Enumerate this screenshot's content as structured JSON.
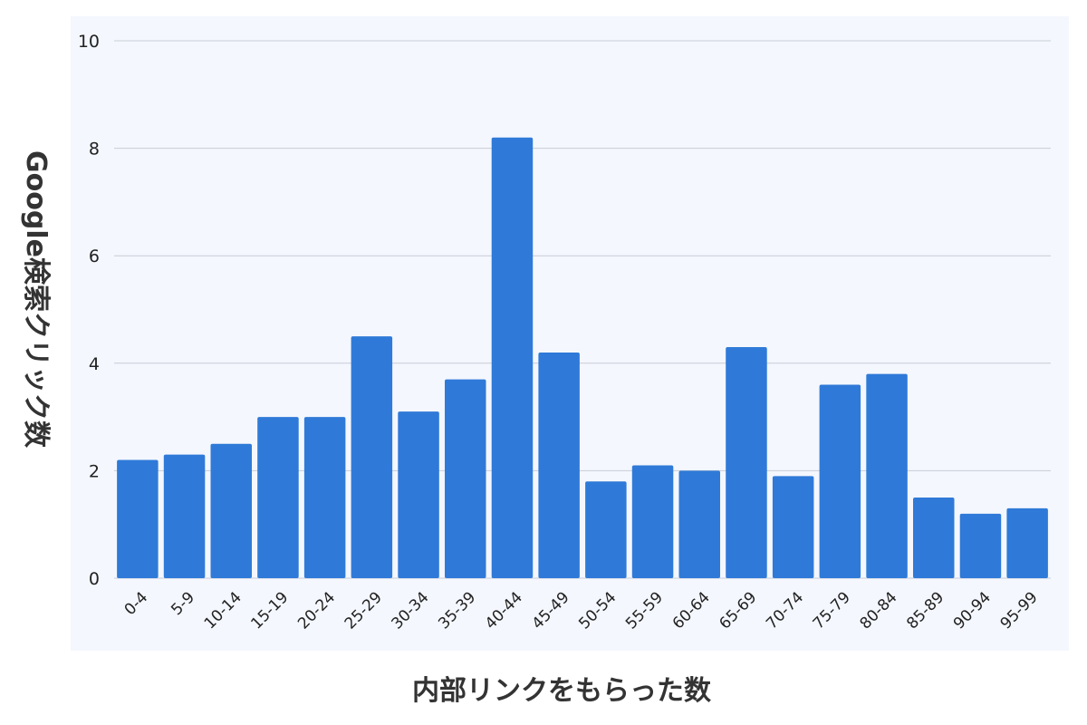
{
  "chart_data": {
    "type": "bar",
    "title": "",
    "xlabel": "内部リンクをもらった数",
    "ylabel": "Google検索クリック数",
    "ylim": [
      0,
      10
    ],
    "yticks": [
      0,
      2,
      4,
      6,
      8,
      10
    ],
    "grid": true,
    "legend": "none",
    "bar_color": "#2f7ad8",
    "plot_background": "#f4f7fd",
    "categories": [
      "0-4",
      "5-9",
      "10-14",
      "15-19",
      "20-24",
      "25-29",
      "30-34",
      "35-39",
      "40-44",
      "45-49",
      "50-54",
      "55-59",
      "60-64",
      "65-69",
      "70-74",
      "75-79",
      "80-84",
      "85-89",
      "90-94",
      "95-99"
    ],
    "values": [
      2.2,
      2.3,
      2.5,
      3.0,
      3.0,
      4.5,
      3.1,
      3.7,
      8.2,
      4.2,
      1.8,
      2.1,
      2.0,
      4.3,
      1.9,
      3.6,
      3.8,
      1.5,
      1.2,
      1.3
    ]
  }
}
